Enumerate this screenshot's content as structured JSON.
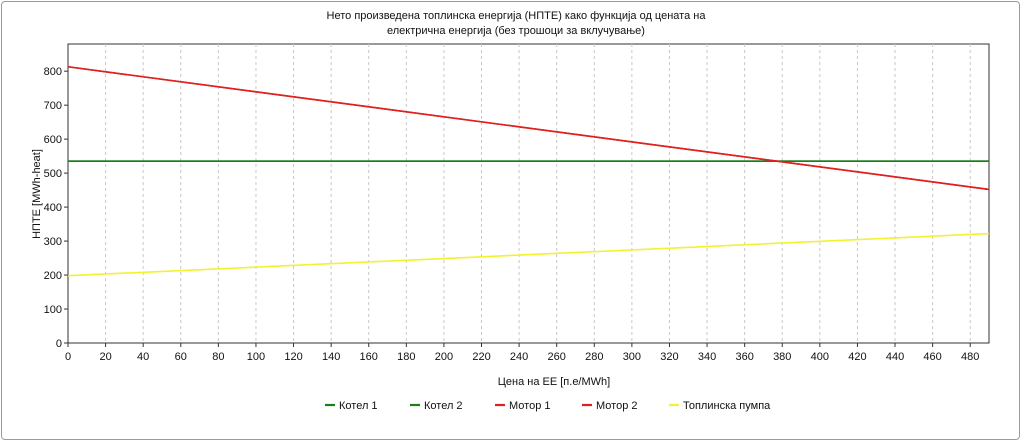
{
  "chart_data": {
    "type": "line",
    "title": "Нето произведена топлинска енергија (НПТЕ) како функција од цената на",
    "subtitle": "електрична енергија (без трошоци за вклучување)",
    "xlabel": "Цена на ЕЕ [п.е/MWh]",
    "ylabel": "НПТЕ [MWh-heat]",
    "xlim": [
      0,
      490
    ],
    "ylim": [
      0,
      880
    ],
    "x_ticks": [
      "0",
      "20",
      "40",
      "60",
      "80",
      "100",
      "120",
      "140",
      "160",
      "180",
      "200",
      "220",
      "240",
      "260",
      "280",
      "300",
      "320",
      "340",
      "360",
      "380",
      "400",
      "420",
      "440",
      "460",
      "480"
    ],
    "y_ticks": [
      "0",
      "100",
      "200",
      "300",
      "400",
      "500",
      "600",
      "700",
      "800"
    ],
    "grid": "vertical-dashed",
    "legend_position": "bottom",
    "series": [
      {
        "name": "Котел 1",
        "color": "#1a7f1a",
        "x": [
          0,
          490
        ],
        "y": [
          535,
          535
        ]
      },
      {
        "name": "Котел 2",
        "color": "#1a7f1a",
        "x": [
          0,
          490
        ],
        "y": [
          535,
          535
        ]
      },
      {
        "name": "Мотор 1",
        "color": "#e02020",
        "x": [
          0,
          490
        ],
        "y": [
          813,
          452
        ]
      },
      {
        "name": "Мотор 2",
        "color": "#e02020",
        "x": [
          0,
          490
        ],
        "y": [
          813,
          452
        ]
      },
      {
        "name": "Топлинска пумпа",
        "color": "#f2f230",
        "x": [
          0,
          490
        ],
        "y": [
          198,
          322
        ]
      }
    ]
  }
}
